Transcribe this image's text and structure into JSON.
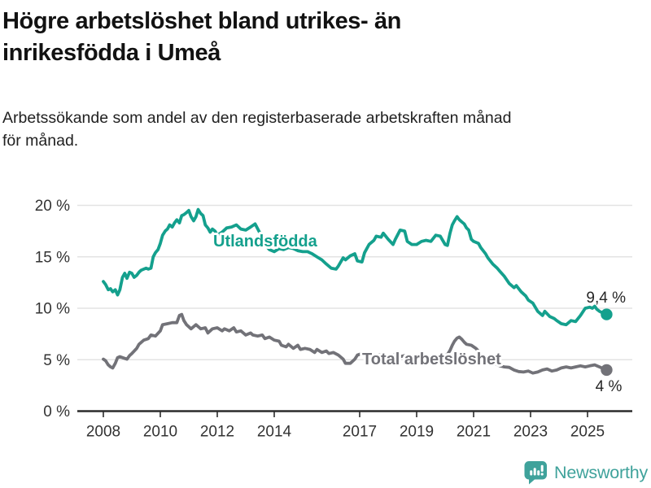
{
  "footer": {
    "brand": "Newsworthy"
  },
  "colors": {
    "foreign_born": "#14a08d",
    "total": "#727278",
    "grid": "#e3e3e3",
    "axis": "#2b2b2b",
    "logo": "#3fa29b"
  },
  "chart_data": {
    "type": "line",
    "title_lines": [
      "Högre arbetslöshet bland utrikes- än",
      "inrikesfödda i Umeå"
    ],
    "subtitle_lines": [
      "Arbetssökande som andel av den registerbaserade arbetskraften månad",
      "för månad."
    ],
    "y_axis": {
      "unit": "%",
      "range": [
        0,
        20
      ],
      "ticks": [
        0,
        5,
        10,
        15,
        20
      ],
      "tick_labels": [
        "0 %",
        "5 %",
        "10 %",
        "15 %",
        "20 %"
      ],
      "grid": true
    },
    "x_axis": {
      "range": [
        2007.85,
        2025.9
      ],
      "tick_years": [
        2008,
        2010,
        2012,
        2014,
        2017,
        2019,
        2021,
        2023,
        2025
      ],
      "tick_labels": [
        "2008",
        "2010",
        "2012",
        "2014",
        "2017",
        "2019",
        "2021",
        "2023",
        "2025"
      ]
    },
    "legend_position": "inline-labels",
    "series": [
      {
        "name": "Utlandsfödda",
        "color": "#14a08d",
        "end_label": "9,4 %",
        "end_value": 9.4,
        "points": [
          [
            2008.0,
            12.6
          ],
          [
            2008.08,
            12.3
          ],
          [
            2008.17,
            11.8
          ],
          [
            2008.25,
            11.9
          ],
          [
            2008.33,
            11.6
          ],
          [
            2008.42,
            11.8
          ],
          [
            2008.5,
            11.3
          ],
          [
            2008.58,
            11.8
          ],
          [
            2008.67,
            13.0
          ],
          [
            2008.75,
            13.4
          ],
          [
            2008.83,
            12.9
          ],
          [
            2008.92,
            13.5
          ],
          [
            2009.0,
            13.4
          ],
          [
            2009.08,
            13.0
          ],
          [
            2009.17,
            13.2
          ],
          [
            2009.25,
            13.5
          ],
          [
            2009.33,
            13.7
          ],
          [
            2009.42,
            13.8
          ],
          [
            2009.5,
            13.9
          ],
          [
            2009.58,
            13.8
          ],
          [
            2009.67,
            13.9
          ],
          [
            2009.75,
            15.0
          ],
          [
            2009.83,
            15.4
          ],
          [
            2009.92,
            15.7
          ],
          [
            2010.0,
            16.3
          ],
          [
            2010.08,
            17.1
          ],
          [
            2010.17,
            17.5
          ],
          [
            2010.25,
            17.7
          ],
          [
            2010.33,
            18.1
          ],
          [
            2010.42,
            17.9
          ],
          [
            2010.5,
            18.3
          ],
          [
            2010.58,
            18.6
          ],
          [
            2010.67,
            18.3
          ],
          [
            2010.75,
            19.0
          ],
          [
            2010.83,
            19.1
          ],
          [
            2010.92,
            19.3
          ],
          [
            2011.0,
            19.5
          ],
          [
            2011.08,
            18.9
          ],
          [
            2011.17,
            18.5
          ],
          [
            2011.25,
            18.9
          ],
          [
            2011.33,
            19.6
          ],
          [
            2011.42,
            19.2
          ],
          [
            2011.5,
            19.0
          ],
          [
            2011.58,
            18.1
          ],
          [
            2011.67,
            17.8
          ],
          [
            2011.75,
            17.4
          ],
          [
            2011.83,
            17.7
          ],
          [
            2011.92,
            17.5
          ],
          [
            2012.0,
            17.1
          ],
          [
            2012.17,
            17.4
          ],
          [
            2012.33,
            17.8
          ],
          [
            2012.5,
            17.9
          ],
          [
            2012.67,
            18.1
          ],
          [
            2012.83,
            17.7
          ],
          [
            2013.0,
            17.6
          ],
          [
            2013.17,
            17.9
          ],
          [
            2013.33,
            18.2
          ],
          [
            2013.5,
            17.3
          ],
          [
            2013.67,
            16.2
          ],
          [
            2013.83,
            15.7
          ],
          [
            2014.0,
            15.5
          ],
          [
            2014.17,
            15.8
          ],
          [
            2014.33,
            15.7
          ],
          [
            2014.5,
            15.9
          ],
          [
            2014.67,
            15.8
          ],
          [
            2014.83,
            15.6
          ],
          [
            2015.0,
            15.5
          ],
          [
            2015.17,
            15.5
          ],
          [
            2015.33,
            15.3
          ],
          [
            2015.5,
            15.0
          ],
          [
            2015.67,
            14.7
          ],
          [
            2015.83,
            14.3
          ],
          [
            2016.0,
            13.9
          ],
          [
            2016.17,
            13.8
          ],
          [
            2016.25,
            14.1
          ],
          [
            2016.42,
            14.9
          ],
          [
            2016.5,
            14.7
          ],
          [
            2016.67,
            15.1
          ],
          [
            2016.83,
            15.3
          ],
          [
            2016.92,
            14.6
          ],
          [
            2017.08,
            14.5
          ],
          [
            2017.17,
            15.4
          ],
          [
            2017.33,
            16.2
          ],
          [
            2017.5,
            16.6
          ],
          [
            2017.58,
            17.0
          ],
          [
            2017.75,
            16.9
          ],
          [
            2017.83,
            17.3
          ],
          [
            2018.0,
            16.7
          ],
          [
            2018.17,
            16.2
          ],
          [
            2018.25,
            16.7
          ],
          [
            2018.42,
            17.6
          ],
          [
            2018.58,
            17.5
          ],
          [
            2018.67,
            16.5
          ],
          [
            2018.83,
            16.2
          ],
          [
            2019.0,
            16.2
          ],
          [
            2019.17,
            16.5
          ],
          [
            2019.33,
            16.6
          ],
          [
            2019.5,
            16.5
          ],
          [
            2019.67,
            17.1
          ],
          [
            2019.83,
            17.0
          ],
          [
            2020.0,
            16.2
          ],
          [
            2020.08,
            16.1
          ],
          [
            2020.17,
            17.3
          ],
          [
            2020.25,
            18.1
          ],
          [
            2020.33,
            18.5
          ],
          [
            2020.42,
            18.9
          ],
          [
            2020.5,
            18.6
          ],
          [
            2020.58,
            18.4
          ],
          [
            2020.67,
            18.2
          ],
          [
            2020.75,
            17.8
          ],
          [
            2020.83,
            17.6
          ],
          [
            2020.92,
            16.7
          ],
          [
            2021.0,
            16.5
          ],
          [
            2021.17,
            16.3
          ],
          [
            2021.25,
            15.9
          ],
          [
            2021.42,
            15.3
          ],
          [
            2021.5,
            14.9
          ],
          [
            2021.67,
            14.3
          ],
          [
            2021.83,
            13.9
          ],
          [
            2021.92,
            13.6
          ],
          [
            2022.08,
            13.1
          ],
          [
            2022.25,
            12.4
          ],
          [
            2022.42,
            12.0
          ],
          [
            2022.5,
            12.2
          ],
          [
            2022.67,
            11.6
          ],
          [
            2022.83,
            11.2
          ],
          [
            2022.92,
            10.8
          ],
          [
            2023.08,
            10.5
          ],
          [
            2023.25,
            9.7
          ],
          [
            2023.42,
            9.3
          ],
          [
            2023.5,
            9.7
          ],
          [
            2023.67,
            9.2
          ],
          [
            2023.83,
            9.0
          ],
          [
            2023.92,
            8.8
          ],
          [
            2024.08,
            8.5
          ],
          [
            2024.25,
            8.4
          ],
          [
            2024.42,
            8.8
          ],
          [
            2024.58,
            8.7
          ],
          [
            2024.75,
            9.3
          ],
          [
            2024.92,
            10.0
          ],
          [
            2025.08,
            10.1
          ],
          [
            2025.17,
            10.0
          ],
          [
            2025.25,
            10.2
          ],
          [
            2025.33,
            9.9
          ],
          [
            2025.42,
            9.7
          ],
          [
            2025.5,
            9.6
          ],
          [
            2025.67,
            9.4
          ]
        ]
      },
      {
        "name": "Total arbetslöshet",
        "color": "#727278",
        "end_label": "4 %",
        "end_value": 4.0,
        "points": [
          [
            2008.0,
            5.05
          ],
          [
            2008.08,
            4.9
          ],
          [
            2008.17,
            4.5
          ],
          [
            2008.25,
            4.3
          ],
          [
            2008.33,
            4.2
          ],
          [
            2008.42,
            4.65
          ],
          [
            2008.5,
            5.2
          ],
          [
            2008.58,
            5.3
          ],
          [
            2008.67,
            5.2
          ],
          [
            2008.83,
            5.05
          ],
          [
            2008.92,
            5.4
          ],
          [
            2009.0,
            5.6
          ],
          [
            2009.17,
            6.1
          ],
          [
            2009.25,
            6.5
          ],
          [
            2009.42,
            6.9
          ],
          [
            2009.58,
            7.05
          ],
          [
            2009.67,
            7.4
          ],
          [
            2009.83,
            7.3
          ],
          [
            2010.0,
            7.8
          ],
          [
            2010.08,
            8.4
          ],
          [
            2010.25,
            8.5
          ],
          [
            2010.42,
            8.6
          ],
          [
            2010.58,
            8.6
          ],
          [
            2010.67,
            9.3
          ],
          [
            2010.75,
            9.4
          ],
          [
            2010.83,
            8.8
          ],
          [
            2010.92,
            8.4
          ],
          [
            2011.08,
            8.0
          ],
          [
            2011.25,
            8.4
          ],
          [
            2011.42,
            8.0
          ],
          [
            2011.58,
            8.1
          ],
          [
            2011.67,
            7.6
          ],
          [
            2011.83,
            8.0
          ],
          [
            2012.0,
            8.1
          ],
          [
            2012.17,
            7.8
          ],
          [
            2012.25,
            8.0
          ],
          [
            2012.42,
            7.8
          ],
          [
            2012.58,
            8.1
          ],
          [
            2012.67,
            7.7
          ],
          [
            2012.83,
            7.8
          ],
          [
            2013.0,
            7.4
          ],
          [
            2013.17,
            7.6
          ],
          [
            2013.25,
            7.4
          ],
          [
            2013.42,
            7.3
          ],
          [
            2013.58,
            7.4
          ],
          [
            2013.67,
            7.05
          ],
          [
            2013.83,
            7.2
          ],
          [
            2014.0,
            6.9
          ],
          [
            2014.17,
            6.8
          ],
          [
            2014.25,
            6.4
          ],
          [
            2014.42,
            6.25
          ],
          [
            2014.5,
            6.5
          ],
          [
            2014.67,
            6.1
          ],
          [
            2014.83,
            6.4
          ],
          [
            2014.92,
            6.0
          ],
          [
            2015.08,
            6.1
          ],
          [
            2015.25,
            6.0
          ],
          [
            2015.42,
            5.7
          ],
          [
            2015.5,
            6.0
          ],
          [
            2015.67,
            5.7
          ],
          [
            2015.83,
            5.85
          ],
          [
            2015.92,
            5.6
          ],
          [
            2016.08,
            5.7
          ],
          [
            2016.25,
            5.45
          ],
          [
            2016.42,
            5.05
          ],
          [
            2016.5,
            4.65
          ],
          [
            2016.67,
            4.65
          ],
          [
            2016.83,
            5.05
          ],
          [
            2016.92,
            5.45
          ],
          [
            2017.08,
            5.6
          ],
          [
            2017.25,
            5.5
          ],
          [
            2017.42,
            5.6
          ],
          [
            2017.58,
            5.4
          ],
          [
            2017.75,
            5.5
          ],
          [
            2017.92,
            5.3
          ],
          [
            2018.08,
            5.4
          ],
          [
            2018.25,
            5.5
          ],
          [
            2018.42,
            5.3
          ],
          [
            2018.58,
            5.4
          ],
          [
            2018.75,
            5.2
          ],
          [
            2018.92,
            5.3
          ],
          [
            2019.08,
            5.2
          ],
          [
            2019.25,
            5.3
          ],
          [
            2019.42,
            5.2
          ],
          [
            2019.58,
            5.4
          ],
          [
            2019.75,
            5.3
          ],
          [
            2019.92,
            5.4
          ],
          [
            2020.08,
            5.5
          ],
          [
            2020.17,
            5.9
          ],
          [
            2020.25,
            6.4
          ],
          [
            2020.33,
            6.8
          ],
          [
            2020.42,
            7.1
          ],
          [
            2020.5,
            7.2
          ],
          [
            2020.58,
            7.0
          ],
          [
            2020.67,
            6.7
          ],
          [
            2020.75,
            6.5
          ],
          [
            2020.92,
            6.4
          ],
          [
            2021.08,
            6.1
          ],
          [
            2021.25,
            5.6
          ],
          [
            2021.42,
            5.2
          ],
          [
            2021.58,
            4.9
          ],
          [
            2021.75,
            4.6
          ],
          [
            2021.92,
            4.4
          ],
          [
            2022.08,
            4.3
          ],
          [
            2022.25,
            4.25
          ],
          [
            2022.42,
            4.0
          ],
          [
            2022.58,
            3.85
          ],
          [
            2022.75,
            3.8
          ],
          [
            2022.92,
            3.9
          ],
          [
            2023.08,
            3.7
          ],
          [
            2023.25,
            3.8
          ],
          [
            2023.42,
            4.0
          ],
          [
            2023.58,
            4.1
          ],
          [
            2023.75,
            3.9
          ],
          [
            2023.92,
            4.0
          ],
          [
            2024.08,
            4.2
          ],
          [
            2024.25,
            4.3
          ],
          [
            2024.42,
            4.2
          ],
          [
            2024.58,
            4.3
          ],
          [
            2024.75,
            4.4
          ],
          [
            2024.92,
            4.3
          ],
          [
            2025.08,
            4.4
          ],
          [
            2025.25,
            4.5
          ],
          [
            2025.42,
            4.3
          ],
          [
            2025.58,
            4.1
          ],
          [
            2025.67,
            4.0
          ]
        ]
      }
    ]
  }
}
